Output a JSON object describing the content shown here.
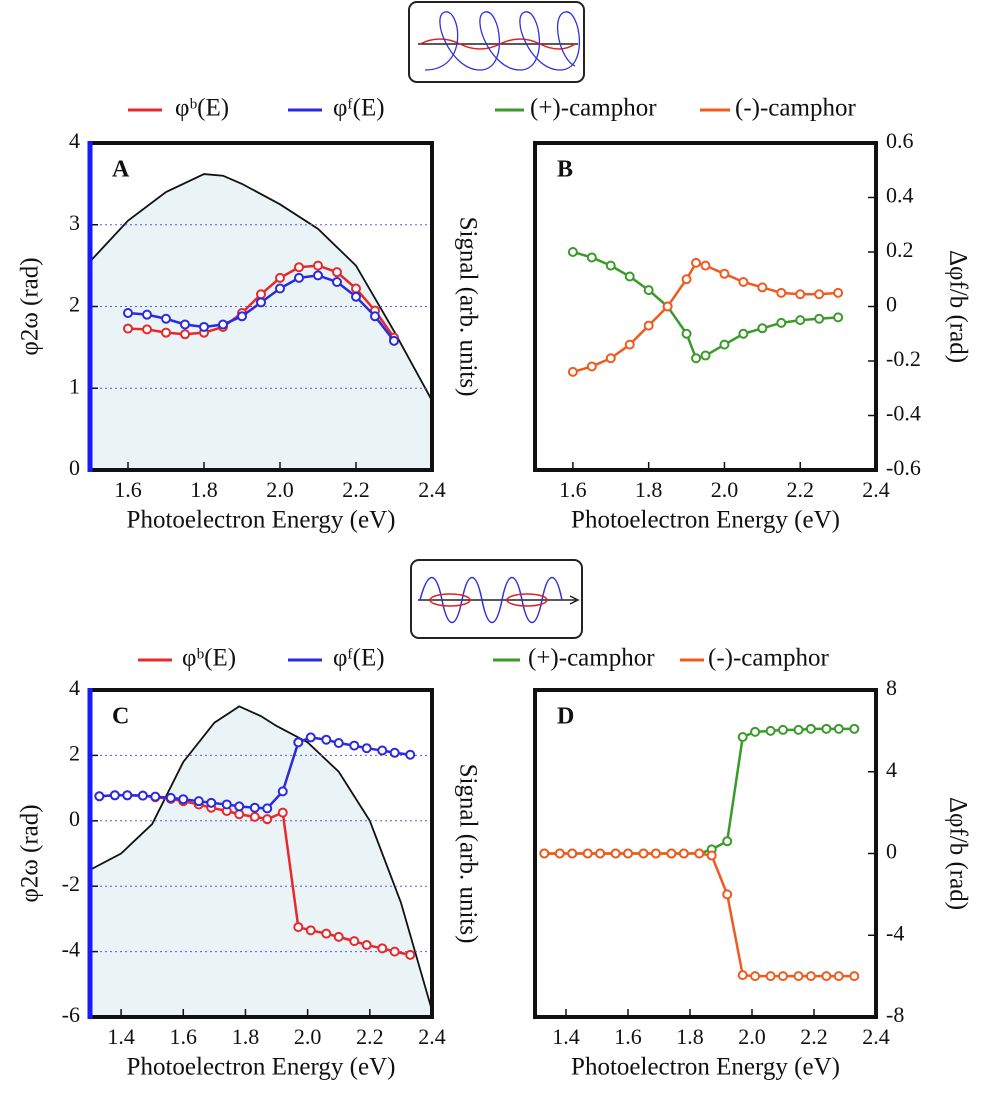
{
  "chart_data": [
    {
      "type": "line",
      "label": "A",
      "x_label": "Photoelectron Energy (eV)",
      "y_label": "φ2ω (rad)",
      "y2_label": "Signal (arb. units)",
      "y_axis_side": "left",
      "y_axis_color": "#1a1aff",
      "grid": true,
      "xlim": [
        1.5,
        2.4
      ],
      "xticks": [
        1.6,
        1.8,
        {
          "value": 2,
          "label": "2.0"
        },
        2.2,
        2.4
      ],
      "ylim": [
        0,
        4
      ],
      "yticks": [
        0,
        1,
        2,
        3,
        4
      ],
      "x": [
        1.6,
        1.65,
        1.7,
        1.75,
        1.8,
        1.85,
        1.9,
        1.95,
        2.0,
        2.05,
        2.1,
        2.15,
        2.2,
        2.25,
        2.3
      ],
      "series": [
        {
          "name": "φᵇ(E)",
          "color": "#e8282b",
          "values": [
            1.73,
            1.72,
            1.68,
            1.66,
            1.68,
            1.75,
            1.92,
            2.15,
            2.35,
            2.48,
            2.5,
            2.42,
            2.22,
            1.95,
            1.62
          ]
        },
        {
          "name": "φᶠ(E)",
          "color": "#2a2ae0",
          "values": [
            1.92,
            1.9,
            1.85,
            1.78,
            1.75,
            1.78,
            1.88,
            2.05,
            2.22,
            2.35,
            2.38,
            2.3,
            2.12,
            1.88,
            1.58
          ]
        }
      ],
      "signal_x": [
        1.5,
        1.6,
        1.7,
        1.8,
        1.85,
        1.9,
        2.0,
        2.1,
        2.2,
        2.3,
        2.4
      ],
      "signal_values": [
        2.55,
        3.05,
        3.4,
        3.62,
        3.6,
        3.5,
        3.25,
        2.95,
        2.5,
        1.7,
        0.85
      ]
    },
    {
      "type": "line",
      "label": "B",
      "x_label": "Photoelectron Energy (eV)",
      "y_label": "Δφf/b (rad)",
      "y_axis_side": "right",
      "grid": false,
      "xlim": [
        1.5,
        2.4
      ],
      "xticks": [
        1.6,
        1.8,
        {
          "value": 2,
          "label": "2.0"
        },
        2.2,
        2.4
      ],
      "ylim": [
        -0.6,
        0.6
      ],
      "yticks": [
        -0.6,
        -0.4,
        -0.2,
        0,
        0.2,
        0.4,
        0.6
      ],
      "x": [
        1.6,
        1.65,
        1.7,
        1.75,
        1.8,
        1.85,
        1.9,
        1.925,
        1.95,
        2.0,
        2.05,
        2.1,
        2.15,
        2.2,
        2.25,
        2.3
      ],
      "series": [
        {
          "name": "(+)-camphor",
          "color": "#3a9a2a",
          "values": [
            0.2,
            0.18,
            0.15,
            0.11,
            0.06,
            0.0,
            -0.1,
            -0.19,
            -0.18,
            -0.14,
            -0.1,
            -0.08,
            -0.06,
            -0.05,
            -0.045,
            -0.04
          ]
        },
        {
          "name": "(-)-camphor",
          "color": "#f05a1e",
          "values": [
            -0.24,
            -0.22,
            -0.19,
            -0.14,
            -0.07,
            0.0,
            0.1,
            0.16,
            0.15,
            0.12,
            0.09,
            0.07,
            0.05,
            0.045,
            0.045,
            0.05
          ]
        }
      ]
    },
    {
      "type": "line",
      "label": "C",
      "x_label": "Photoelectron Energy (eV)",
      "y_label": "φ2ω (rad)",
      "y2_label": "Signal (arb. units)",
      "y_axis_side": "left",
      "y_axis_color": "#1a1aff",
      "grid": true,
      "xlim": [
        1.3,
        2.4
      ],
      "xticks": [
        1.4,
        1.6,
        1.8,
        {
          "value": 2,
          "label": "2.0"
        },
        2.2,
        2.4
      ],
      "ylim": [
        -6,
        4
      ],
      "yticks": [
        -6,
        -4,
        -2,
        0,
        2,
        4
      ],
      "x": [
        1.33,
        1.38,
        1.42,
        1.47,
        1.51,
        1.56,
        1.6,
        1.65,
        1.69,
        1.74,
        1.78,
        1.83,
        1.87,
        1.92,
        1.97,
        2.01,
        2.06,
        2.1,
        2.15,
        2.19,
        2.24,
        2.28,
        2.33
      ],
      "series": [
        {
          "name": "φᵇ(E)",
          "color": "#e8282b",
          "values": [
            0.75,
            0.78,
            0.78,
            0.77,
            0.72,
            0.67,
            0.6,
            0.5,
            0.4,
            0.3,
            0.2,
            0.12,
            0.05,
            0.25,
            -3.25,
            -3.35,
            -3.45,
            -3.55,
            -3.68,
            -3.8,
            -3.9,
            -4.0,
            -4.1
          ]
        },
        {
          "name": "φᶠ(E)",
          "color": "#2a2ae0",
          "values": [
            0.75,
            0.78,
            0.78,
            0.77,
            0.74,
            0.7,
            0.66,
            0.6,
            0.55,
            0.5,
            0.44,
            0.4,
            0.38,
            0.9,
            2.4,
            2.55,
            2.48,
            2.38,
            2.3,
            2.22,
            2.15,
            2.08,
            2.02
          ]
        }
      ],
      "signal_x": [
        1.3,
        1.4,
        1.5,
        1.6,
        1.7,
        1.78,
        1.85,
        1.9,
        2.0,
        2.1,
        2.2,
        2.3,
        2.4
      ],
      "signal_values": [
        -1.5,
        -1.0,
        -0.1,
        1.8,
        3.0,
        3.5,
        3.2,
        2.9,
        2.4,
        1.5,
        0.0,
        -2.5,
        -5.8
      ]
    },
    {
      "type": "line",
      "label": "D",
      "x_label": "Photoelectron Energy (eV)",
      "y_label": "Δφf/b (rad)",
      "y_axis_side": "right",
      "grid": false,
      "xlim": [
        1.3,
        2.4
      ],
      "xticks": [
        1.4,
        1.6,
        1.8,
        {
          "value": 2,
          "label": "2.0"
        },
        2.2,
        2.4
      ],
      "ylim": [
        -8,
        8
      ],
      "yticks": [
        -8,
        -4,
        0,
        4,
        8
      ],
      "x": [
        1.33,
        1.38,
        1.42,
        1.47,
        1.51,
        1.56,
        1.6,
        1.65,
        1.69,
        1.74,
        1.78,
        1.83,
        1.87,
        1.92,
        1.97,
        2.01,
        2.06,
        2.1,
        2.15,
        2.19,
        2.24,
        2.28,
        2.33
      ],
      "series": [
        {
          "name": "(+)-camphor",
          "color": "#3a9a2a",
          "values": [
            0,
            0,
            0,
            0,
            0,
            0,
            0,
            0,
            0,
            0,
            0,
            0,
            0.2,
            0.6,
            5.7,
            5.95,
            6.0,
            6.05,
            6.05,
            6.1,
            6.1,
            6.1,
            6.1
          ]
        },
        {
          "name": "(-)-camphor",
          "color": "#f05a1e",
          "values": [
            0,
            0,
            0,
            0,
            0,
            0,
            0,
            0,
            0,
            0,
            0,
            0,
            -0.1,
            -2.0,
            -5.95,
            -6.0,
            -6.0,
            -6.0,
            -6.0,
            -6.0,
            -6.0,
            -6.0,
            -6.0
          ]
        }
      ]
    }
  ]
}
